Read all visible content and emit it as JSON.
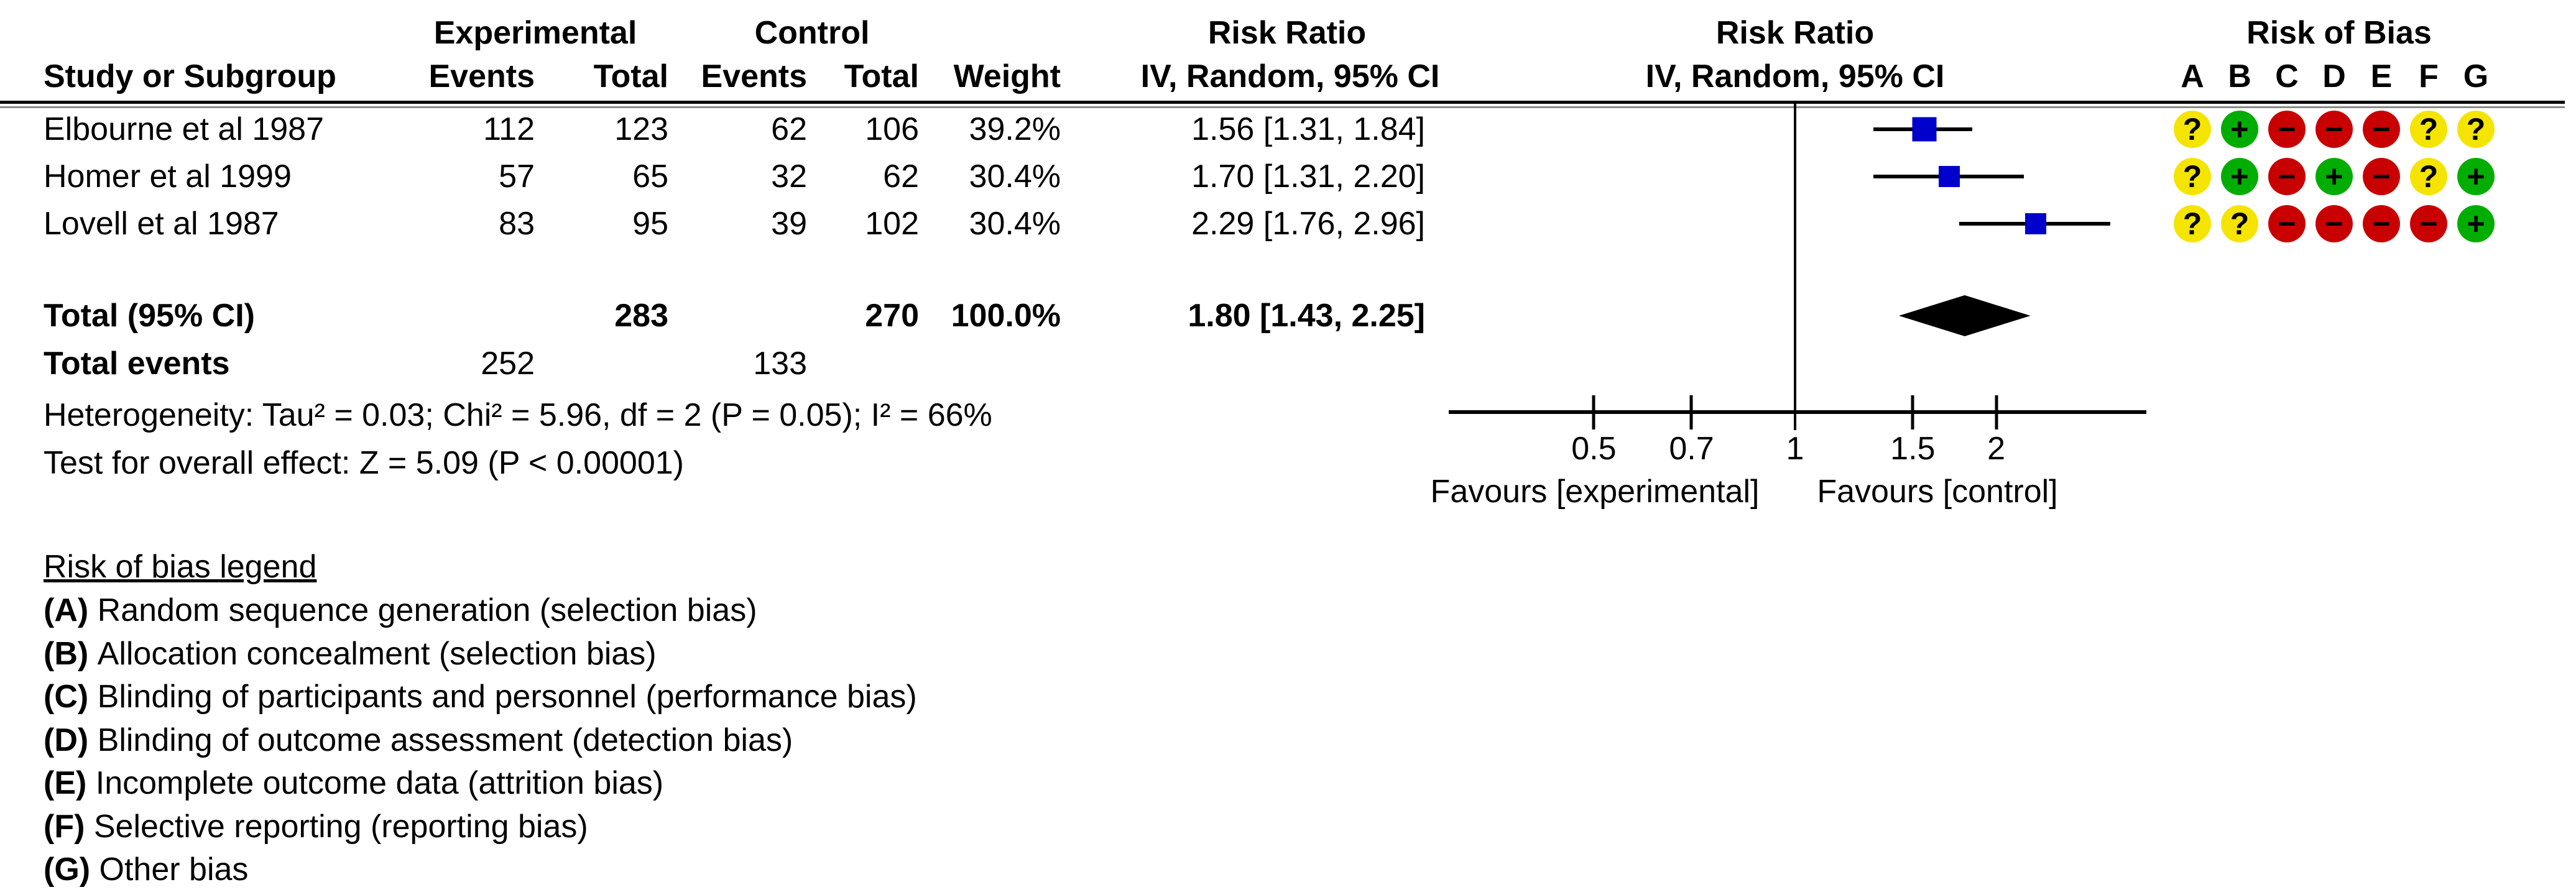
{
  "table": {
    "group_headers": {
      "experimental": "Experimental",
      "control": "Control",
      "risk_ratio_text": "Risk Ratio",
      "risk_ratio_plot": "Risk Ratio",
      "risk_of_bias": "Risk of Bias"
    },
    "col_headers": {
      "study": "Study or Subgroup",
      "events_exp": "Events",
      "total_exp": "Total",
      "events_ctrl": "Events",
      "total_ctrl": "Total",
      "weight": "Weight",
      "ci_text": "IV, Random, 95% CI",
      "ci_plot": "IV, Random, 95% CI"
    },
    "rob_letters": [
      "A",
      "B",
      "C",
      "D",
      "E",
      "F",
      "G"
    ],
    "studies": [
      {
        "name": "Elbourne et al 1987",
        "events_exp": "112",
        "total_exp": "123",
        "events_ctrl": "62",
        "total_ctrl": "106",
        "weight": "39.2%",
        "rr_text": "1.56 [1.31, 1.84]",
        "rob": [
          "unclear",
          "low",
          "high",
          "high",
          "high",
          "unclear",
          "unclear"
        ]
      },
      {
        "name": "Homer et al 1999",
        "events_exp": "57",
        "total_exp": "65",
        "events_ctrl": "32",
        "total_ctrl": "62",
        "weight": "30.4%",
        "rr_text": "1.70 [1.31, 2.20]",
        "rob": [
          "unclear",
          "low",
          "high",
          "low",
          "high",
          "unclear",
          "low"
        ]
      },
      {
        "name": "Lovell et al 1987",
        "events_exp": "83",
        "total_exp": "95",
        "events_ctrl": "39",
        "total_ctrl": "102",
        "weight": "30.4%",
        "rr_text": "2.29 [1.76, 2.96]",
        "rob": [
          "unclear",
          "unclear",
          "high",
          "high",
          "high",
          "high",
          "low"
        ]
      }
    ],
    "total": {
      "label": "Total (95% CI)",
      "total_exp": "283",
      "total_ctrl": "270",
      "weight": "100.0%",
      "rr_text": "1.80 [1.43, 2.25]"
    },
    "total_events": {
      "label": "Total events",
      "exp": "252",
      "ctrl": "133"
    },
    "heterogeneity": "Heterogeneity: Tau² = 0.03; Chi² = 5.96, df = 2 (P = 0.05); I² = 66%",
    "overall_effect": "Test for overall effect: Z = 5.09 (P < 0.00001)"
  },
  "plot": {
    "tick_labels": [
      "0.5",
      "0.7",
      "1",
      "1.5",
      "2"
    ],
    "favours_left": "Favours [experimental]",
    "favours_right": "Favours [control]",
    "colors": {
      "square_blue": "#0000CC",
      "diamond_black": "#000000",
      "rob_low_green": "#00AD00",
      "rob_high_red": "#C80000",
      "rob_unclear_yellow": "#F5E400"
    },
    "rob_symbols": {
      "low": "+",
      "high": "−",
      "unclear": "?"
    }
  },
  "legend": {
    "title": "Risk of bias legend",
    "items": [
      {
        "key": "(A)",
        "text": "Random sequence generation (selection bias)"
      },
      {
        "key": "(B)",
        "text": "Allocation concealment (selection bias)"
      },
      {
        "key": "(C)",
        "text": "Blinding of participants and personnel (performance bias)"
      },
      {
        "key": "(D)",
        "text": "Blinding of outcome assessment (detection bias)"
      },
      {
        "key": "(E)",
        "text": "Incomplete outcome data (attrition bias)"
      },
      {
        "key": "(F)",
        "text": "Selective reporting (reporting bias)"
      },
      {
        "key": "(G)",
        "text": "Other bias"
      }
    ]
  },
  "chart_data": {
    "type": "scatter",
    "subtype": "forest-plot",
    "effect_measure": "Risk Ratio, IV, Random, 95% CI",
    "x_scale": "log",
    "x_ticks": [
      0.5,
      0.7,
      1,
      1.5,
      2
    ],
    "xlim": [
      0.3,
      3.4
    ],
    "xlabel_left": "Favours [experimental]",
    "xlabel_right": "Favours [control]",
    "series": [
      {
        "name": "Elbourne et al 1987",
        "rr": 1.56,
        "ci": [
          1.31,
          1.84
        ],
        "weight_pct": 39.2
      },
      {
        "name": "Homer et al 1999",
        "rr": 1.7,
        "ci": [
          1.31,
          2.2
        ],
        "weight_pct": 30.4
      },
      {
        "name": "Lovell et al 1987",
        "rr": 2.29,
        "ci": [
          1.76,
          2.96
        ],
        "weight_pct": 30.4
      }
    ],
    "total": {
      "name": "Total (95% CI)",
      "rr": 1.8,
      "ci": [
        1.43,
        2.25
      ],
      "weight_pct": 100.0,
      "marker": "diamond"
    },
    "heterogeneity": {
      "tau2": 0.03,
      "chi2": 5.96,
      "df": 2,
      "p": 0.05,
      "i2_pct": 66
    },
    "overall_effect": {
      "z": 5.09,
      "p": "< 0.00001"
    }
  }
}
